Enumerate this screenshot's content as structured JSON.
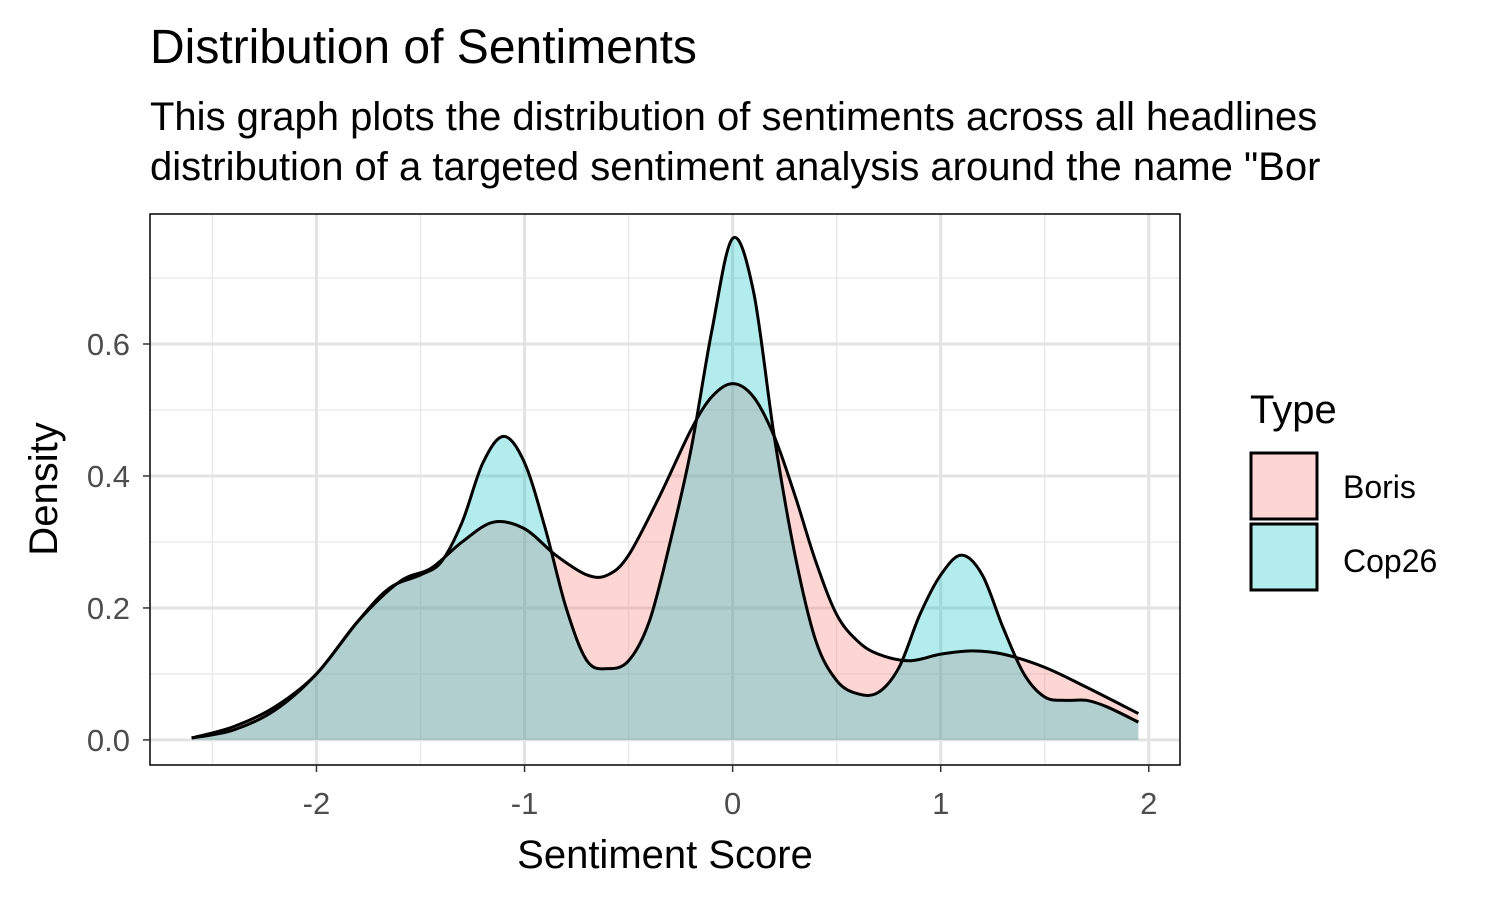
{
  "chart_data": {
    "type": "area",
    "title": "Distribution of Sentiments",
    "subtitle_lines": [
      "This graph plots the distribution of sentiments across all headlines",
      "distribution of a targeted sentiment analysis around the name \"Bor"
    ],
    "xlabel": "Sentiment Score",
    "ylabel": "Density",
    "xlim": [
      -2.8,
      2.15
    ],
    "ylim": [
      -0.038,
      0.797
    ],
    "x_ticks": [
      -2,
      -1,
      0,
      1,
      2
    ],
    "x_tick_labels": [
      "-2",
      "-1",
      "0",
      "1",
      "2"
    ],
    "y_ticks": [
      0.0,
      0.2,
      0.4,
      0.6
    ],
    "y_tick_labels": [
      "0.0",
      "0.2",
      "0.4",
      "0.6"
    ],
    "grid": true,
    "legend": {
      "title": "Type",
      "position": "right"
    },
    "series": [
      {
        "name": "Boris",
        "fill": "#F8766D",
        "fill_opacity": 0.3,
        "points": [
          [
            -2.6,
            0.003
          ],
          [
            -2.4,
            0.02
          ],
          [
            -2.2,
            0.05
          ],
          [
            -2.0,
            0.1
          ],
          [
            -1.8,
            0.18
          ],
          [
            -1.6,
            0.24
          ],
          [
            -1.45,
            0.26
          ],
          [
            -1.3,
            0.3
          ],
          [
            -1.15,
            0.33
          ],
          [
            -1.0,
            0.32
          ],
          [
            -0.85,
            0.28
          ],
          [
            -0.7,
            0.25
          ],
          [
            -0.6,
            0.25
          ],
          [
            -0.5,
            0.28
          ],
          [
            -0.35,
            0.37
          ],
          [
            -0.2,
            0.47
          ],
          [
            -0.1,
            0.52
          ],
          [
            0.0,
            0.54
          ],
          [
            0.1,
            0.52
          ],
          [
            0.2,
            0.46
          ],
          [
            0.3,
            0.37
          ],
          [
            0.4,
            0.27
          ],
          [
            0.5,
            0.19
          ],
          [
            0.6,
            0.15
          ],
          [
            0.7,
            0.13
          ],
          [
            0.85,
            0.12
          ],
          [
            1.0,
            0.13
          ],
          [
            1.15,
            0.135
          ],
          [
            1.3,
            0.13
          ],
          [
            1.5,
            0.11
          ],
          [
            1.7,
            0.08
          ],
          [
            1.95,
            0.04
          ]
        ]
      },
      {
        "name": "Cop26",
        "fill": "#00BFC4",
        "fill_opacity": 0.3,
        "points": [
          [
            -2.6,
            0.003
          ],
          [
            -2.4,
            0.015
          ],
          [
            -2.2,
            0.045
          ],
          [
            -2.0,
            0.1
          ],
          [
            -1.8,
            0.18
          ],
          [
            -1.65,
            0.23
          ],
          [
            -1.5,
            0.25
          ],
          [
            -1.4,
            0.27
          ],
          [
            -1.3,
            0.33
          ],
          [
            -1.2,
            0.42
          ],
          [
            -1.1,
            0.46
          ],
          [
            -1.0,
            0.42
          ],
          [
            -0.9,
            0.32
          ],
          [
            -0.8,
            0.2
          ],
          [
            -0.7,
            0.12
          ],
          [
            -0.6,
            0.108
          ],
          [
            -0.5,
            0.12
          ],
          [
            -0.4,
            0.18
          ],
          [
            -0.3,
            0.3
          ],
          [
            -0.2,
            0.44
          ],
          [
            -0.1,
            0.62
          ],
          [
            0.0,
            0.76
          ],
          [
            0.1,
            0.68
          ],
          [
            0.2,
            0.46
          ],
          [
            0.3,
            0.28
          ],
          [
            0.4,
            0.15
          ],
          [
            0.5,
            0.09
          ],
          [
            0.6,
            0.07
          ],
          [
            0.7,
            0.072
          ],
          [
            0.8,
            0.11
          ],
          [
            0.9,
            0.19
          ],
          [
            1.0,
            0.25
          ],
          [
            1.1,
            0.28
          ],
          [
            1.2,
            0.25
          ],
          [
            1.3,
            0.17
          ],
          [
            1.4,
            0.1
          ],
          [
            1.5,
            0.065
          ],
          [
            1.6,
            0.06
          ],
          [
            1.7,
            0.06
          ],
          [
            1.8,
            0.05
          ],
          [
            1.95,
            0.027
          ]
        ]
      }
    ]
  }
}
